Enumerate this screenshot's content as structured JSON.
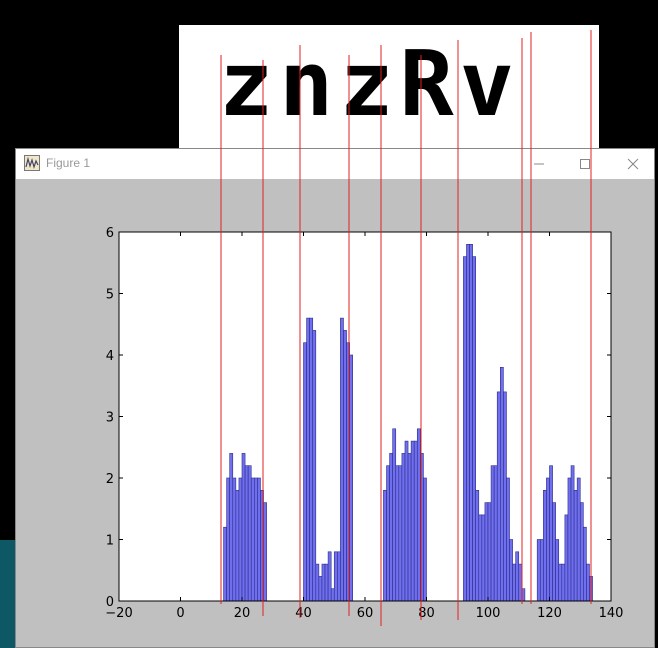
{
  "window": {
    "title": "Figure 1"
  },
  "captcha": {
    "text": "znzRv"
  },
  "chart_data": {
    "type": "bar",
    "xlim": [
      -20,
      140
    ],
    "ylim": [
      0,
      6
    ],
    "xticks": [
      "−20",
      "0",
      "20",
      "40",
      "60",
      "80",
      "100",
      "120",
      "140"
    ],
    "yticks": [
      "0",
      "1",
      "2",
      "3",
      "4",
      "5",
      "6"
    ],
    "bar_color": "#7070ee",
    "bar_edge_color": "#2a2a8a",
    "x": [
      14,
      15,
      16,
      17,
      18,
      19,
      20,
      21,
      22,
      23,
      24,
      25,
      26,
      27,
      40,
      41,
      42,
      43,
      44,
      45,
      46,
      47,
      48,
      49,
      50,
      51,
      52,
      53,
      54,
      55,
      66,
      67,
      68,
      69,
      70,
      71,
      72,
      73,
      74,
      75,
      76,
      77,
      78,
      79,
      80,
      92,
      93,
      94,
      95,
      96,
      97,
      98,
      99,
      100,
      101,
      102,
      103,
      104,
      105,
      106,
      107,
      108,
      109,
      110,
      111,
      116,
      117,
      118,
      119,
      120,
      121,
      122,
      123,
      124,
      125,
      126,
      127,
      128,
      129,
      130,
      131,
      132,
      133
    ],
    "y": [
      1.2,
      2.0,
      2.4,
      2.0,
      1.8,
      2.0,
      2.4,
      2.2,
      2.2,
      2.0,
      2.0,
      2.0,
      1.8,
      1.6,
      4.2,
      4.6,
      4.6,
      4.4,
      0.6,
      0.4,
      0.6,
      0.6,
      0.8,
      0.2,
      0.8,
      0.8,
      4.6,
      4.4,
      4.2,
      4.0,
      1.8,
      2.2,
      2.4,
      2.8,
      2.2,
      2.2,
      2.4,
      2.6,
      2.4,
      2.6,
      2.6,
      2.8,
      2.4,
      2.0,
      0.0,
      5.6,
      5.8,
      5.8,
      5.6,
      1.8,
      1.4,
      1.4,
      1.6,
      1.6,
      2.2,
      2.2,
      3.4,
      3.8,
      3.4,
      2.0,
      1.0,
      0.6,
      0.8,
      0.6,
      0.2,
      1.0,
      1.0,
      1.8,
      2.0,
      2.2,
      1.6,
      1.0,
      0.6,
      0.6,
      1.4,
      2.0,
      2.2,
      1.8,
      2.0,
      1.6,
      1.2,
      0.6,
      0.4
    ]
  },
  "overlay": {
    "line_color": "#e02020"
  }
}
